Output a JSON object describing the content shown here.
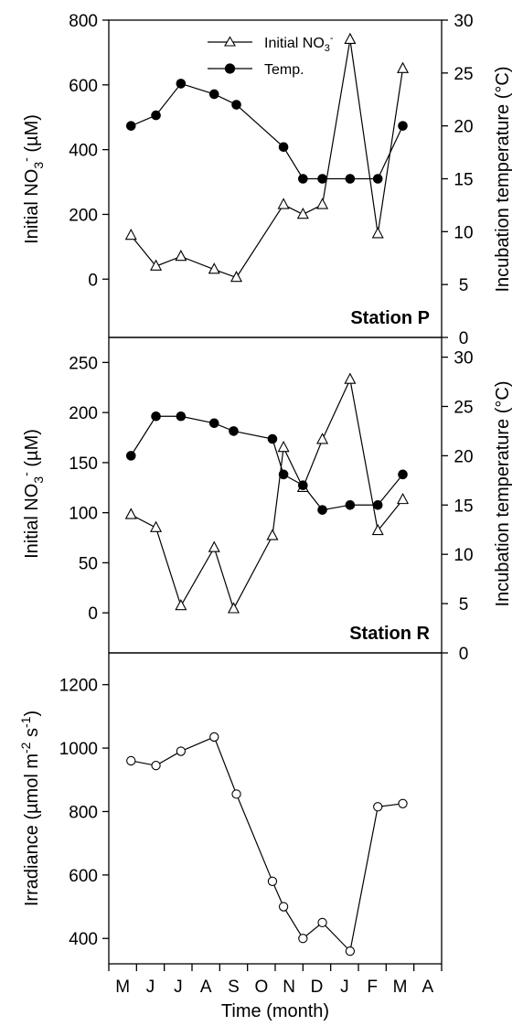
{
  "chart_data": [
    {
      "type": "line",
      "panel": "Station P",
      "station_label": "Station P",
      "ylabel_left": "Initial NO3- (µM)",
      "ylabel_right": "Incubation temperature (°C)",
      "ylim_left": [
        -180,
        800
      ],
      "yticks_left": [
        0,
        200,
        400,
        600,
        800
      ],
      "ylim_right": [
        0,
        30
      ],
      "yticks_right": [
        0,
        5,
        10,
        15,
        20,
        25,
        30
      ],
      "legend_position": "top-center",
      "series": [
        {
          "name": "Initial NO3-",
          "axis": "left",
          "marker": "open-triangle",
          "x": [
            0.8,
            1.7,
            2.6,
            3.8,
            4.6,
            6.3,
            7.0,
            7.7,
            8.7,
            9.7,
            10.6
          ],
          "values": [
            135,
            40,
            70,
            30,
            5,
            230,
            200,
            230,
            740,
            140,
            650
          ]
        },
        {
          "name": "Temp.",
          "axis": "right",
          "marker": "filled-circle",
          "x": [
            0.8,
            1.7,
            2.6,
            3.8,
            4.6,
            6.3,
            7.0,
            7.7,
            8.7,
            9.7,
            10.6
          ],
          "values": [
            20,
            21,
            24,
            23,
            22,
            18,
            15,
            15,
            15,
            15,
            20
          ]
        }
      ]
    },
    {
      "type": "line",
      "panel": "Station R",
      "station_label": "Station R",
      "ylabel_left": "Initial NO3- (µM)",
      "ylabel_right": "Incubation temperature (°C)",
      "ylim_left": [
        -40,
        275
      ],
      "yticks_left": [
        0,
        50,
        100,
        150,
        200,
        250
      ],
      "ylim_right": [
        0,
        32
      ],
      "yticks_right": [
        0,
        5,
        10,
        15,
        20,
        25,
        30
      ],
      "series": [
        {
          "name": "Initial NO3-",
          "axis": "left",
          "marker": "open-triangle",
          "x": [
            0.8,
            1.7,
            2.6,
            3.8,
            4.5,
            5.9,
            6.3,
            7.0,
            7.7,
            8.7,
            9.7,
            10.6
          ],
          "values": [
            98,
            85,
            7,
            65,
            4,
            77,
            165,
            125,
            173,
            233,
            82,
            113
          ]
        },
        {
          "name": "Temp.",
          "axis": "right",
          "marker": "filled-circle",
          "x": [
            0.8,
            1.7,
            2.6,
            3.8,
            4.5,
            5.9,
            6.3,
            7.0,
            7.7,
            8.7,
            9.7,
            10.6
          ],
          "values": [
            20,
            24,
            24,
            23.3,
            22.5,
            21.7,
            18.1,
            17,
            14.5,
            15,
            15,
            18.1
          ]
        }
      ]
    },
    {
      "type": "line",
      "panel": "Irradiance",
      "ylabel_left": "Irradiance (µmol m-2 s-1)",
      "ylim_left": [
        320,
        1300
      ],
      "yticks_left": [
        400,
        600,
        800,
        1000,
        1200
      ],
      "series": [
        {
          "name": "Irradiance",
          "axis": "left",
          "marker": "open-circle",
          "x": [
            0.8,
            1.7,
            2.6,
            3.8,
            4.6,
            5.9,
            6.3,
            7.0,
            7.7,
            8.7,
            9.7,
            10.6
          ],
          "values": [
            960,
            945,
            990,
            1035,
            855,
            580,
            500,
            400,
            450,
            360,
            815,
            825
          ]
        }
      ]
    }
  ],
  "xaxis": {
    "label": "Time (month)",
    "categories": [
      "M",
      "J",
      "J",
      "A",
      "S",
      "O",
      "N",
      "D",
      "J",
      "F",
      "M",
      "A"
    ]
  },
  "legend": {
    "nitrate_label": "Initial NO",
    "nitrate_sub": "3",
    "nitrate_sup": "-",
    "temp_label": "Temp."
  },
  "axis_text": {
    "nitrate_prefix": "Initial NO",
    "nitrate_sub": "3",
    "nitrate_sup": "-",
    "nitrate_unit": " (µM)",
    "temperature_title": "Incubation temperature (°C)",
    "irr_prefix": "Irradiance (µmol m",
    "irr_sup1": "-2",
    "irr_mid": " s",
    "irr_sup2": "-1",
    "irr_end": ")"
  }
}
